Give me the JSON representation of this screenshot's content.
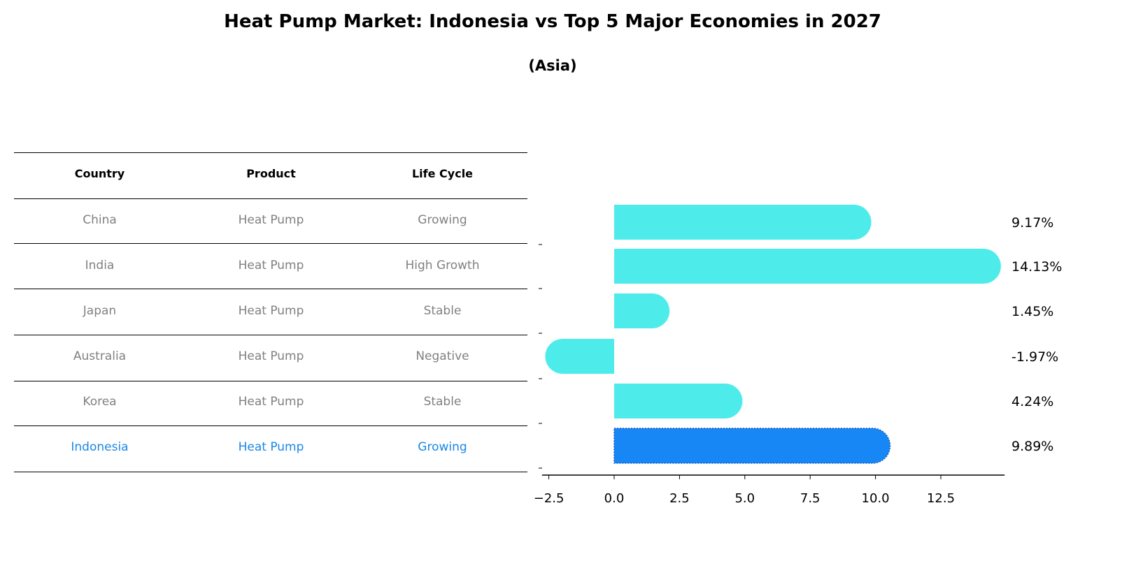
{
  "chart_data": {
    "type": "bar",
    "orientation": "horizontal",
    "title": "Heat Pump Market: Indonesia vs Top 5 Major Economies in 2027",
    "subtitle": "(Asia)",
    "categories": [
      "China",
      "India",
      "Japan",
      "Australia",
      "Korea",
      "Indonesia"
    ],
    "values": [
      9.17,
      14.13,
      1.45,
      -1.97,
      4.24,
      9.89
    ],
    "value_labels": [
      "9.17%",
      "14.13%",
      "1.45%",
      "-1.97%",
      "4.24%",
      "9.89%"
    ],
    "highlight": "Indonesia",
    "xlim": [
      -2.76,
      14.94
    ],
    "xticks": [
      -2.5,
      0.0,
      2.5,
      5.0,
      7.5,
      10.0,
      12.5
    ],
    "xtick_labels": [
      "−2.5",
      "0.0",
      "2.5",
      "5.0",
      "7.5",
      "10.0",
      "12.5"
    ],
    "xlabel": "",
    "ylabel": "",
    "grid": false,
    "colors": {
      "bar": "#4deceb",
      "highlight": "#1787f5",
      "highlight_edge": "#1a5fc0"
    }
  },
  "table": {
    "headers": [
      "Country",
      "Product",
      "Life Cycle"
    ],
    "rows": [
      [
        "China",
        "Heat Pump",
        "Growing"
      ],
      [
        "India",
        "Heat Pump",
        "High Growth"
      ],
      [
        "Japan",
        "Heat Pump",
        "Stable"
      ],
      [
        "Australia",
        "Heat Pump",
        "Negative"
      ],
      [
        "Korea",
        "Heat Pump",
        "Stable"
      ],
      [
        "Indonesia",
        "Heat Pump",
        "Growing"
      ]
    ]
  }
}
